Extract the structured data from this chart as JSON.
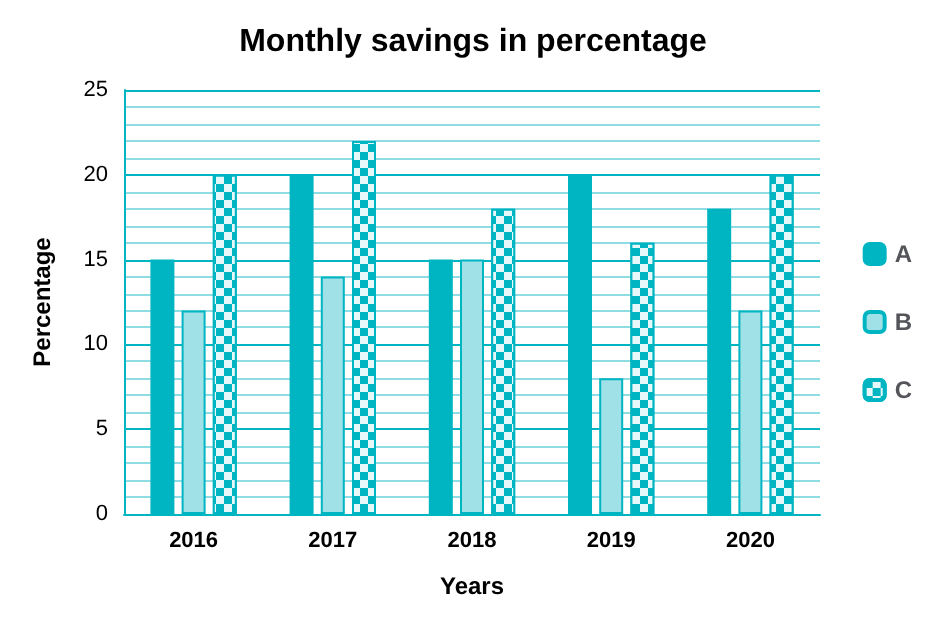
{
  "chart_data": {
    "type": "bar",
    "title": "Monthly savings in percentage",
    "xlabel": "Years",
    "ylabel": "Percentage",
    "categories": [
      "2016",
      "2017",
      "2018",
      "2019",
      "2020"
    ],
    "series": [
      {
        "name": "A",
        "color": "#00b5c2",
        "values": [
          15,
          20,
          15,
          20,
          18
        ]
      },
      {
        "name": "B",
        "color": "#a0e1e8",
        "values": [
          12,
          14,
          15,
          8,
          12
        ]
      },
      {
        "name": "C",
        "color": "#00b5c2",
        "values": [
          20,
          22,
          18,
          16,
          20
        ]
      }
    ],
    "ylim": [
      0,
      25
    ],
    "yticks": [
      0,
      {
        "value": 1,
        "label": null
      },
      {
        "value": 2,
        "label": null
      },
      {
        "value": 3,
        "label": null
      },
      {
        "value": 4,
        "label": null
      },
      5,
      {
        "value": 6,
        "label": null
      },
      {
        "value": 7,
        "label": null
      },
      {
        "value": 8,
        "label": null
      },
      {
        "value": 9,
        "label": null
      },
      10,
      {
        "value": 11,
        "label": null
      },
      {
        "value": 12,
        "label": null
      },
      {
        "value": 13,
        "label": null
      },
      {
        "value": 14,
        "label": null
      },
      15,
      {
        "value": 16,
        "label": null
      },
      {
        "value": 17,
        "label": null
      },
      {
        "value": 18,
        "label": null
      },
      {
        "value": 19,
        "label": null
      },
      20,
      {
        "value": 21,
        "label": null
      },
      {
        "value": 22,
        "label": null
      },
      {
        "value": 23,
        "label": null
      },
      {
        "value": 24,
        "label": null
      },
      25
    ],
    "grid": "y",
    "legend": "right"
  }
}
